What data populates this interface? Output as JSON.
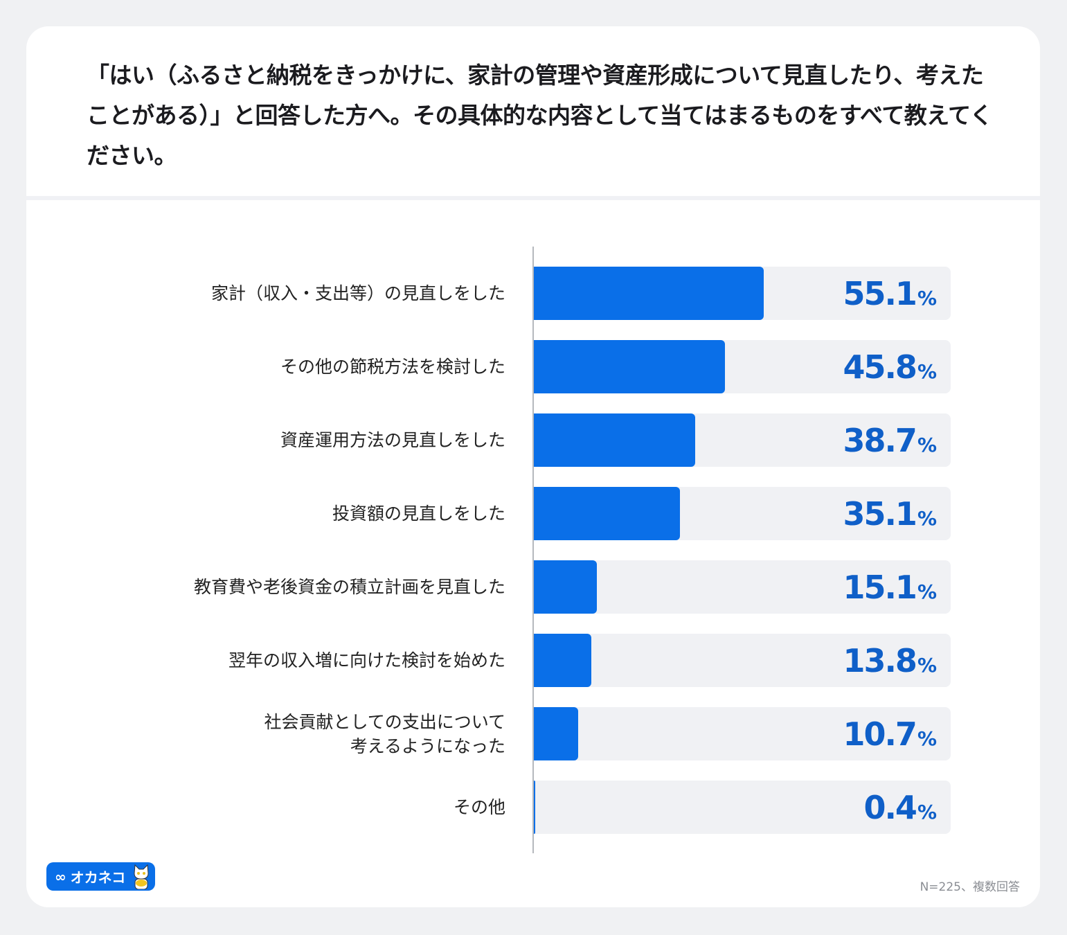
{
  "question": "「はい（ふるさと納税をきっかけに、家計の管理や資産形成について見直したり、考えたことがある）」と回答した方へ。その具体的な内容として当てはまるものをすべて教えてください。",
  "chart_data": {
    "type": "bar",
    "orientation": "horizontal",
    "title": "「はい（ふるさと納税をきっかけに、家計の管理や資産形成について見直したり、考えたことがある）」と回答した方へ。その具体的な内容として当てはまるものをすべて教えてください。",
    "categories": [
      "家計（収入・支出等）の見直しをした",
      "その他の節税方法を検討した",
      "資産運用方法の見直しをした",
      "投資額の見直しをした",
      "教育費や老後資金の積立計画を見直した",
      "翌年の収入増に向けた検討を始めた",
      "社会貢献としての支出について考えるようになった",
      "その他"
    ],
    "values": [
      55.1,
      45.8,
      38.7,
      35.1,
      15.1,
      13.8,
      10.7,
      0.4
    ],
    "value_labels": [
      "55.1",
      "45.8",
      "38.7",
      "35.1",
      "15.1",
      "13.8",
      "10.7",
      "0.4"
    ],
    "unit": "%",
    "xlim": [
      0,
      100
    ],
    "xlabel": "",
    "ylabel": "",
    "grid": false
  },
  "label_lines": [
    [
      "家計（収入・支出等）の見直しをした"
    ],
    [
      "その他の節税方法を検討した"
    ],
    [
      "資産運用方法の見直しをした"
    ],
    [
      "投資額の見直しをした"
    ],
    [
      "教育費や老後資金の積立計画を見直した"
    ],
    [
      "翌年の収入増に向けた検討を始めた"
    ],
    [
      "社会貢献としての支出について",
      "考えるようになった"
    ],
    [
      "その他"
    ]
  ],
  "footer": {
    "logo": "オカネコ",
    "note": "N=225、複数回答"
  },
  "colors": {
    "bar": "#0a6fe8",
    "track": "#f0f1f4",
    "value_text": "#0f5fc8"
  }
}
